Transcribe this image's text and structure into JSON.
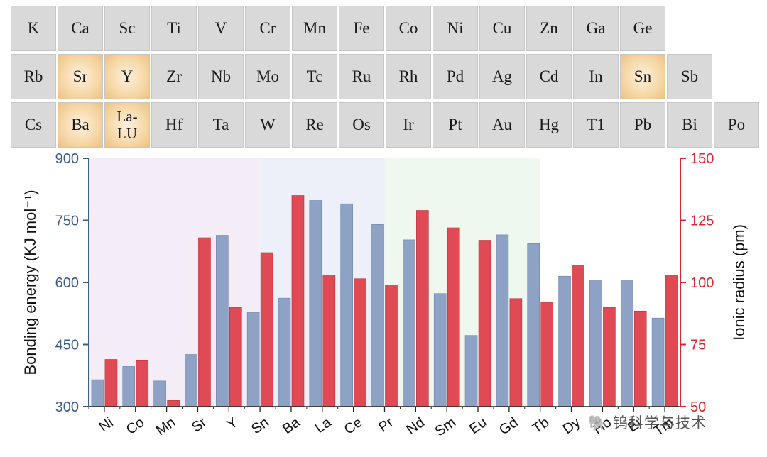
{
  "periodic_table": {
    "rows": [
      [
        {
          "symbol": "K"
        },
        {
          "symbol": "Ca"
        },
        {
          "symbol": "Sc"
        },
        {
          "symbol": "Ti"
        },
        {
          "symbol": "V"
        },
        {
          "symbol": "Cr"
        },
        {
          "symbol": "Mn"
        },
        {
          "symbol": "Fe"
        },
        {
          "symbol": "Co"
        },
        {
          "symbol": "Ni"
        },
        {
          "symbol": "Cu"
        },
        {
          "symbol": "Zn"
        },
        {
          "symbol": "Ga"
        },
        {
          "symbol": "Ge"
        }
      ],
      [
        {
          "symbol": "Rb"
        },
        {
          "symbol": "Sr",
          "highlighted": true
        },
        {
          "symbol": "Y",
          "highlighted": true
        },
        {
          "symbol": "Zr"
        },
        {
          "symbol": "Nb"
        },
        {
          "symbol": "Mo"
        },
        {
          "symbol": "Tc"
        },
        {
          "symbol": "Ru"
        },
        {
          "symbol": "Rh"
        },
        {
          "symbol": "Pd"
        },
        {
          "symbol": "Ag"
        },
        {
          "symbol": "Cd"
        },
        {
          "symbol": "In"
        },
        {
          "symbol": "Sn",
          "highlighted": true
        },
        {
          "symbol": "Sb"
        }
      ],
      [
        {
          "symbol": "Cs"
        },
        {
          "symbol": "Ba",
          "highlighted": true
        },
        {
          "symbol": "La-LU",
          "highlighted": true
        },
        {
          "symbol": "Hf"
        },
        {
          "symbol": "Ta"
        },
        {
          "symbol": "W"
        },
        {
          "symbol": "Re"
        },
        {
          "symbol": "Os"
        },
        {
          "symbol": "Ir"
        },
        {
          "symbol": "Pt"
        },
        {
          "symbol": "Au"
        },
        {
          "symbol": "Hg"
        },
        {
          "symbol": "T1"
        },
        {
          "symbol": "Pb"
        },
        {
          "symbol": "Bi"
        },
        {
          "symbol": "Po"
        }
      ]
    ],
    "highlight_color": "#f2cc95"
  },
  "chart_data": {
    "type": "bar",
    "categories": [
      "Ni",
      "Co",
      "Mn",
      "Sr",
      "Y",
      "Sn",
      "Ba",
      "La",
      "Ce",
      "Pr",
      "Nd",
      "Sm",
      "Eu",
      "Gd",
      "Tb",
      "Dy",
      "Ho",
      "Er",
      "Tm"
    ],
    "series": [
      {
        "axis": "left",
        "color": "#8ea2c6",
        "values": [
          365,
          397,
          362,
          426,
          714,
          528,
          562,
          798,
          790,
          740,
          703,
          573,
          472,
          715,
          694,
          615,
          606,
          606,
          514
        ]
      },
      {
        "axis": "right",
        "color": "#e04a55",
        "values": [
          69,
          68.5,
          52.5,
          118,
          90,
          112,
          135,
          103,
          101.5,
          99,
          129,
          122,
          117,
          93.5,
          92,
          107,
          90,
          88.5,
          103
        ]
      }
    ],
    "y_left": {
      "label": "Bonding energy (KJ mol⁻¹)",
      "min": 300,
      "max": 900,
      "ticks": [
        300,
        450,
        600,
        750,
        900
      ],
      "color": "#3d5a8c"
    },
    "y_right": {
      "label": "Ionic radius (pm)",
      "min": 50,
      "max": 150,
      "ticks": [
        50,
        75,
        100,
        125,
        150
      ],
      "color": "#d9252f"
    },
    "background_bands": [
      {
        "from": "Ni",
        "to": "Sn",
        "color": "#f4ecf7"
      },
      {
        "from": "Sn",
        "to": "Pr",
        "color": "#eef0f9"
      },
      {
        "from": "Pr",
        "to": "Tb",
        "color": "#eef8ee"
      },
      {
        "from": "Tb",
        "to": "Tm",
        "color": "#ffffff"
      }
    ]
  },
  "watermark": "🐘 钨科学与技术"
}
